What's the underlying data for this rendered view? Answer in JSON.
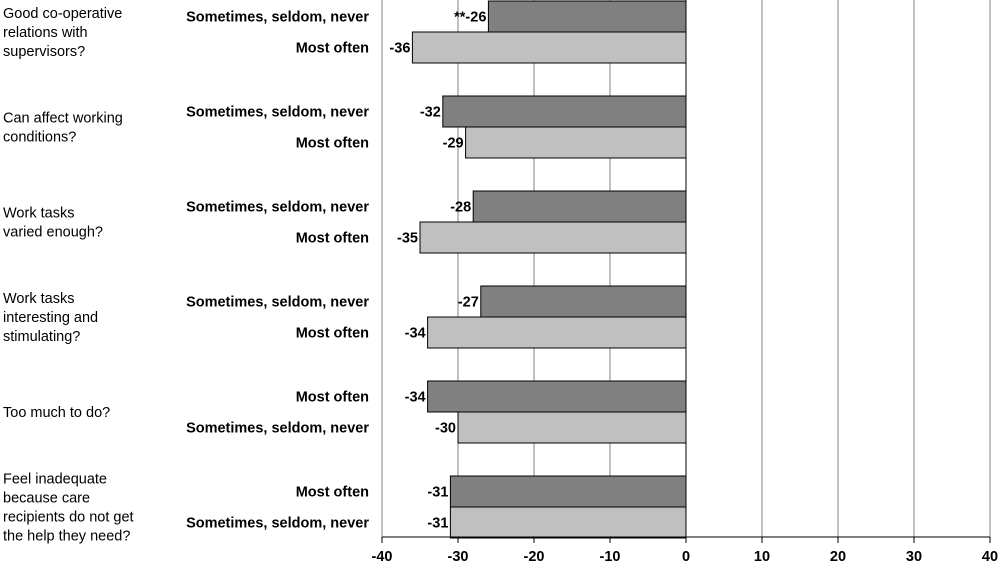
{
  "chart_data": {
    "type": "bar",
    "orientation": "horizontal",
    "xlim": [
      -40,
      40
    ],
    "x_ticks": [
      -40,
      -30,
      -20,
      -10,
      0,
      10,
      20,
      30,
      40
    ],
    "grid": true,
    "colors": {
      "dark": "#808080",
      "light": "#c0c0c0",
      "grid": "#808080"
    },
    "groups": [
      {
        "question": [
          "Good co-operative",
          "relations with",
          "supervisors?"
        ],
        "bars": [
          {
            "label": "Sometimes, seldom, never",
            "value": -26,
            "data_label": "**-26",
            "shade": "dark"
          },
          {
            "label": "Most often",
            "value": -36,
            "data_label": "-36",
            "shade": "light"
          }
        ]
      },
      {
        "question": [
          "Can affect working",
          "conditions?"
        ],
        "bars": [
          {
            "label": "Sometimes, seldom, never",
            "value": -32,
            "data_label": "-32",
            "shade": "dark"
          },
          {
            "label": "Most often",
            "value": -29,
            "data_label": "-29",
            "shade": "light"
          }
        ]
      },
      {
        "question": [
          "Work tasks",
          "varied enough?"
        ],
        "bars": [
          {
            "label": "Sometimes, seldom, never",
            "value": -28,
            "data_label": "-28",
            "shade": "dark"
          },
          {
            "label": "Most often",
            "value": -35,
            "data_label": "-35",
            "shade": "light"
          }
        ]
      },
      {
        "question": [
          "Work tasks",
          "interesting and",
          "stimulating?"
        ],
        "bars": [
          {
            "label": "Sometimes, seldom, never",
            "value": -27,
            "data_label": "-27",
            "shade": "dark"
          },
          {
            "label": "Most often",
            "value": -34,
            "data_label": "-34",
            "shade": "light"
          }
        ]
      },
      {
        "question": [
          "Too much to do?"
        ],
        "bars": [
          {
            "label": "Most often",
            "value": -34,
            "data_label": "-34",
            "shade": "dark"
          },
          {
            "label": "Sometimes, seldom, never",
            "value": -30,
            "data_label": "-30",
            "shade": "light"
          }
        ]
      },
      {
        "question": [
          "Feel inadequate",
          "because care",
          "recipients do not get",
          "the help they need?"
        ],
        "bars": [
          {
            "label": "Most often",
            "value": -31,
            "data_label": "-31",
            "shade": "dark"
          },
          {
            "label": "Sometimes, seldom, never",
            "value": -31,
            "data_label": "-31",
            "shade": "light"
          }
        ]
      }
    ]
  }
}
